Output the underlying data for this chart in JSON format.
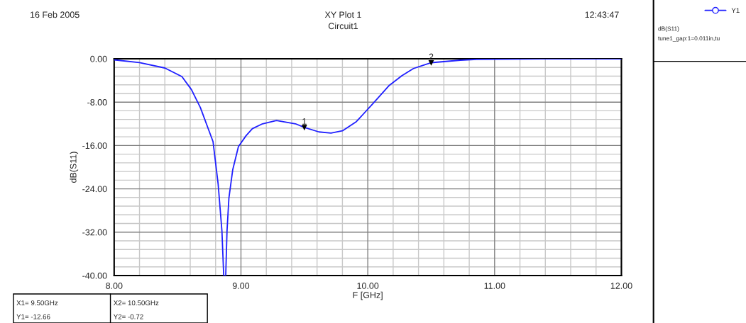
{
  "chart_data": {
    "type": "line",
    "title": "XY Plot 1",
    "subtitle": "Circuit1",
    "xlabel": "F [GHz]",
    "ylabel": "dB(S11)",
    "x": [
      8.0,
      8.2,
      8.4,
      8.535,
      8.61,
      8.68,
      8.78,
      8.82,
      8.85,
      8.864,
      8.872,
      8.88,
      8.89,
      8.905,
      8.935,
      8.98,
      9.04,
      9.09,
      9.17,
      9.28,
      9.43,
      9.5,
      9.615,
      9.71,
      9.8,
      9.91,
      10.04,
      10.17,
      10.27,
      10.36,
      10.45,
      10.5,
      10.73,
      10.86,
      11.38,
      12.0
    ],
    "series": [
      {
        "name": "Y1",
        "color": "#2020ff",
        "values": [
          -0.2,
          -0.7,
          -1.7,
          -3.3,
          -5.7,
          -9.0,
          -15.3,
          -23.1,
          -31.8,
          -40,
          -40,
          -40,
          -31.8,
          -25.7,
          -20.5,
          -16.2,
          -14.2,
          -12.9,
          -12.0,
          -11.4,
          -12.0,
          -12.66,
          -13.5,
          -13.7,
          -13.3,
          -11.6,
          -8.3,
          -4.9,
          -3.1,
          -1.8,
          -1.1,
          -0.72,
          -0.26,
          -0.1,
          0,
          0
        ]
      }
    ],
    "xlim": [
      8,
      12
    ],
    "ylim": [
      -40,
      0
    ],
    "xticks": [
      {
        "value": 8,
        "label": "8.00"
      },
      {
        "value": 9,
        "label": "9.00"
      },
      {
        "value": 10,
        "label": "10.00"
      },
      {
        "value": 11,
        "label": "11.00"
      },
      {
        "value": 12,
        "label": "12.00"
      }
    ],
    "yticks": [
      {
        "value": -40,
        "label": "-40.00"
      },
      {
        "value": -32,
        "label": "-32.00"
      },
      {
        "value": -24,
        "label": "-24.00"
      },
      {
        "value": -16,
        "label": "-16.00"
      },
      {
        "value": -8,
        "label": "-8.00"
      },
      {
        "value": 0,
        "label": "0.00"
      }
    ],
    "grid": true,
    "legend": "right",
    "annotations": [
      {
        "text": "1",
        "x": 9.5,
        "y": -12.66
      },
      {
        "text": "2",
        "x": 10.5,
        "y": -0.72
      },
      "16 Feb 2005",
      "12:43:47",
      "X1= 9.50GHz",
      "Y1= -12.66",
      "X2= 10.50GHz",
      "Y2= -0.72",
      "dB(S11)",
      "tune1_gap:1=0.011in,tu"
    ]
  }
}
